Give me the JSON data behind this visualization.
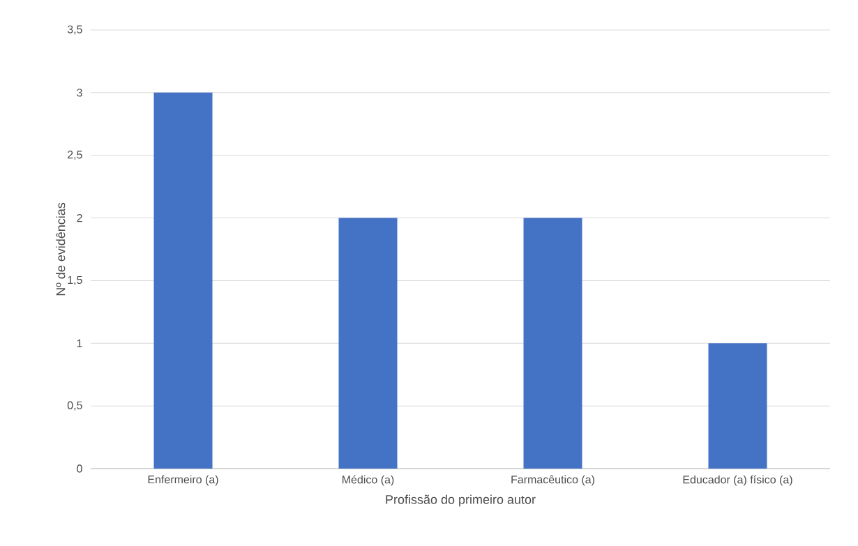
{
  "chart_data": {
    "type": "bar",
    "xlabel": "Profissão do primeiro autor",
    "ylabel": "Nº de evidências",
    "categories": [
      "Enfermeiro (a)",
      "Médico (a)",
      "Farmacêutico (a)",
      "Educador (a) físico (a)"
    ],
    "values": [
      3,
      2,
      2,
      1
    ],
    "color": "#4472c4",
    "ylim": [
      0,
      3.5
    ],
    "yticks": [
      0,
      {
        "value": 0.5,
        "label": "0,5"
      },
      1,
      {
        "value": 1.5,
        "label": "1,5"
      },
      2,
      {
        "value": 2.5,
        "label": "2,5"
      },
      3,
      {
        "value": 3.5,
        "label": "3,5"
      }
    ],
    "grid": "y"
  }
}
